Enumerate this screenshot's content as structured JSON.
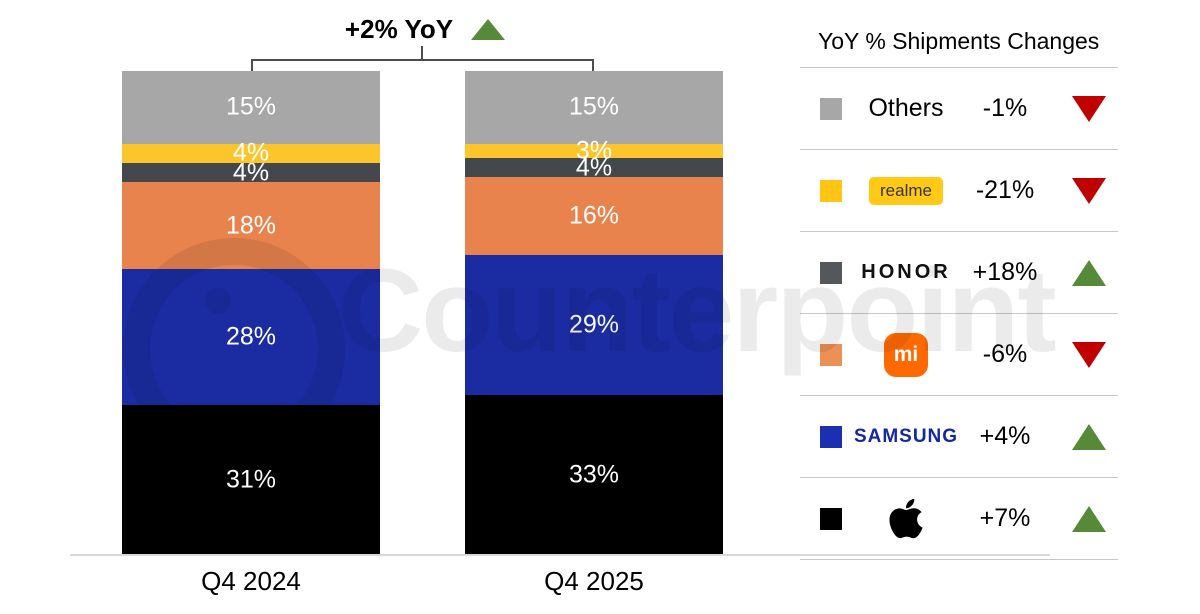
{
  "title_annotation": {
    "text": "+2% YoY",
    "direction": "up"
  },
  "watermark": "Counterpoint",
  "legend": {
    "title": "YoY % Shipments Changes",
    "rows": [
      {
        "brand": "Others",
        "display": "text",
        "change": "-1%",
        "direction": "down",
        "swatch_color": "#a7a7a7"
      },
      {
        "brand": "realme",
        "display": "realme-badge",
        "change": "-21%",
        "direction": "down",
        "swatch_color": "#ffc515"
      },
      {
        "brand": "HONOR",
        "display": "honor-wordmark",
        "change": "+18%",
        "direction": "up",
        "swatch_color": "#54585c"
      },
      {
        "brand": "mi",
        "display": "xiaomi-logo",
        "change": "-6%",
        "direction": "down",
        "swatch_color": "#ec9055"
      },
      {
        "brand": "SAMSUNG",
        "display": "samsung-wordmark",
        "change": "+4%",
        "direction": "up",
        "swatch_color": "#1b2fb0"
      },
      {
        "brand": "Apple",
        "display": "apple-logo",
        "change": "+7%",
        "direction": "up",
        "swatch_color": "#000000"
      }
    ]
  },
  "chart_data": {
    "type": "bar",
    "subtype": "stacked-percent",
    "categories": [
      "Q4 2024",
      "Q4 2025"
    ],
    "series": [
      {
        "name": "Others",
        "color": "#a7a7a7",
        "values": [
          15,
          15
        ]
      },
      {
        "name": "realme",
        "color": "#fdc52c",
        "values": [
          4,
          3
        ]
      },
      {
        "name": "HONOR",
        "color": "#44484c",
        "values": [
          4,
          4
        ]
      },
      {
        "name": "Xiaomi",
        "color": "#e8834e",
        "values": [
          18,
          16
        ]
      },
      {
        "name": "Samsung",
        "color": "#1b2ca3",
        "values": [
          28,
          29
        ]
      },
      {
        "name": "Apple",
        "color": "#000000",
        "values": [
          31,
          33
        ]
      }
    ],
    "stack_order_top_to_bottom": [
      "Others",
      "realme",
      "HONOR",
      "Xiaomi",
      "Samsung",
      "Apple"
    ],
    "labels_unit": "%",
    "total_yoy": "+2% YoY",
    "ylim": [
      0,
      100
    ],
    "grid": false,
    "legend_position": "right"
  },
  "colors": {
    "up": "#568a38",
    "down": "#c00000",
    "axis_line": "#d9d9d9",
    "separator": "#c8c8c8"
  }
}
